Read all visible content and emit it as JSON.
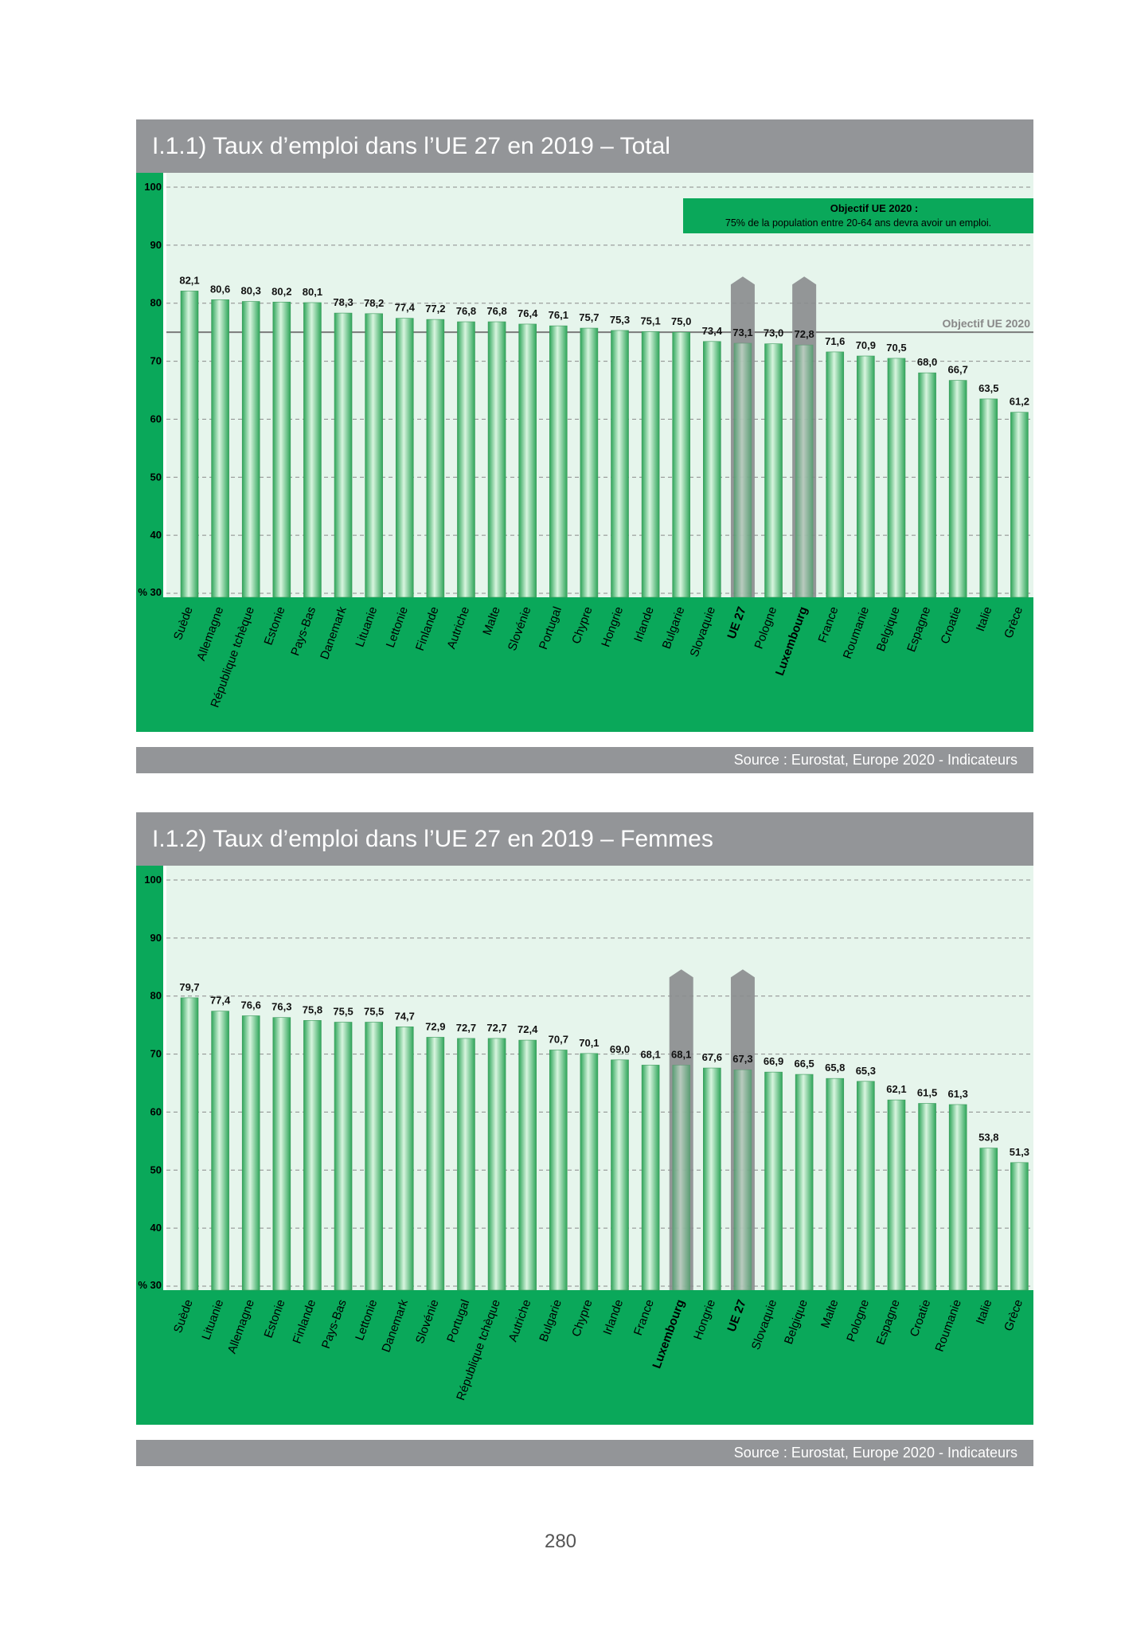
{
  "page_number": "280",
  "colors": {
    "header_gray": "#939598",
    "green": "#0aa85a",
    "plot_bg": "#e6f5ec",
    "bar_light": "#d8f5df",
    "bar_dark": "#2fa55a",
    "highlight": "#8a8c8e"
  },
  "chart_data": [
    {
      "type": "bar",
      "title": "I.1.1) Taux d’emploi dans l’UE 27 en 2019 – Total",
      "source": "Source : Eurostat, Europe 2020 - Indicateurs",
      "ylim": [
        30,
        100
      ],
      "yticks": [
        "% 30",
        "40",
        "50",
        "60",
        "70",
        "80",
        "90",
        "100"
      ],
      "grid": true,
      "target_value": 75,
      "target_label": "Objectif UE 2020",
      "note_title": "Objectif UE 2020 :",
      "note_text": "75% de la population entre 20-64 ans devra avoir un emploi.",
      "categories": [
        "Suède",
        "Allemagne",
        "République tchèque",
        "Estonie",
        "Pays-Bas",
        "Danemark",
        "Lituanie",
        "Lettonie",
        "Finlande",
        "Autriche",
        "Malte",
        "Slovénie",
        "Portugal",
        "Chypre",
        "Hongrie",
        "Irlande",
        "Bulgarie",
        "Slovaquie",
        "UE 27",
        "Pologne",
        "Luxembourg",
        "France",
        "Roumanie",
        "Belgique",
        "Espagne",
        "Croatie",
        "Italie",
        "Grèce"
      ],
      "values": [
        82.1,
        80.6,
        80.3,
        80.2,
        80.1,
        78.3,
        78.2,
        77.4,
        77.2,
        76.8,
        76.8,
        76.4,
        76.1,
        75.7,
        75.3,
        75.1,
        75.0,
        73.4,
        73.1,
        73.0,
        72.8,
        71.6,
        70.9,
        70.5,
        68.0,
        66.7,
        63.5,
        61.2
      ],
      "labels": [
        "82,1",
        "80,6",
        "80,3",
        "80,2",
        "80,1",
        "78,3",
        "78,2",
        "77,4",
        "77,2",
        "76,8",
        "76,8",
        "76,4",
        "76,1",
        "75,7",
        "75,3",
        "75,1",
        "75,0",
        "73,4",
        "73,1",
        "73,0",
        "72,8",
        "71,6",
        "70,9",
        "70,5",
        "68,0",
        "66,7",
        "63,5",
        "61,2"
      ],
      "highlighted": [
        "UE 27",
        "Luxembourg"
      ]
    },
    {
      "type": "bar",
      "title": "I.1.2) Taux d’emploi dans l’UE 27 en 2019 – Femmes",
      "source": "Source : Eurostat, Europe 2020 - Indicateurs",
      "ylim": [
        30,
        100
      ],
      "yticks": [
        "% 30",
        "40",
        "50",
        "60",
        "70",
        "80",
        "90",
        "100"
      ],
      "grid": true,
      "categories": [
        "Suède",
        "Lituanie",
        "Allemagne",
        "Estonie",
        "Finlande",
        "Pays-Bas",
        "Lettonie",
        "Danemark",
        "Slovénie",
        "Portugal",
        "République tchèque",
        "Autriche",
        "Bulgarie",
        "Chypre",
        "Irlande",
        "France",
        "Luxembourg",
        "Hongrie",
        "UE 27",
        "Slovaquie",
        "Belgique",
        "Malte",
        "Pologne",
        "Espagne",
        "Croatie",
        "Roumanie",
        "Italie",
        "Grèce"
      ],
      "values": [
        79.7,
        77.4,
        76.6,
        76.3,
        75.8,
        75.5,
        75.5,
        74.7,
        72.9,
        72.7,
        72.7,
        72.4,
        70.7,
        70.1,
        69.0,
        68.1,
        68.1,
        67.6,
        67.3,
        66.9,
        66.5,
        65.8,
        65.3,
        62.1,
        61.5,
        61.3,
        53.8,
        51.3
      ],
      "labels": [
        "79,7",
        "77,4",
        "76,6",
        "76,3",
        "75,8",
        "75,5",
        "75,5",
        "74,7",
        "72,9",
        "72,7",
        "72,7",
        "72,4",
        "70,7",
        "70,1",
        "69,0",
        "68,1",
        "68,1",
        "67,6",
        "67,3",
        "66,9",
        "66,5",
        "65,8",
        "65,3",
        "62,1",
        "61,5",
        "61,3",
        "53,8",
        "51,3"
      ],
      "highlighted": [
        "Luxembourg",
        "UE 27"
      ]
    }
  ]
}
